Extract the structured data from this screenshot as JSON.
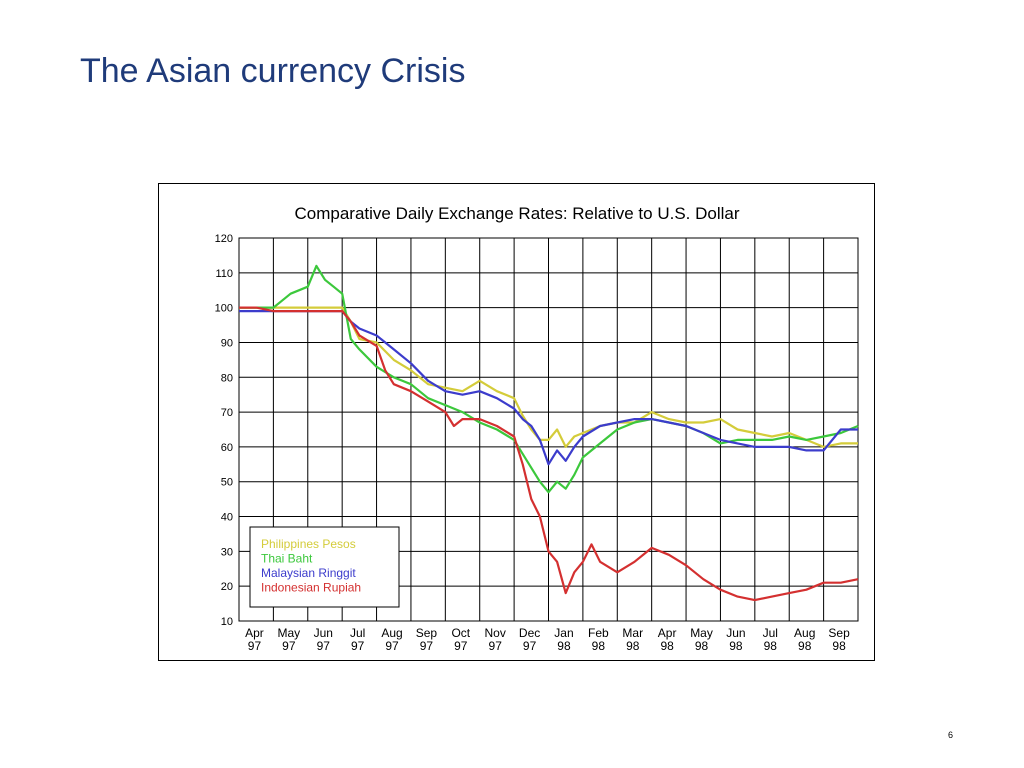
{
  "slide": {
    "title": "The Asian currency Crisis",
    "page_number": "6"
  },
  "chart_data": {
    "type": "line",
    "title": "Comparative Daily Exchange Rates: Relative to U.S. Dollar",
    "xlabel": "",
    "ylabel": "",
    "ylim": [
      10,
      120
    ],
    "yticks": [
      10,
      20,
      30,
      40,
      50,
      60,
      70,
      80,
      90,
      100,
      110,
      120
    ],
    "xlim": [
      0,
      18
    ],
    "x_tick_labels": [
      {
        "month": "Apr",
        "year": "97"
      },
      {
        "month": "May",
        "year": "97"
      },
      {
        "month": "Jun",
        "year": "97"
      },
      {
        "month": "Jul",
        "year": "97"
      },
      {
        "month": "Aug",
        "year": "97"
      },
      {
        "month": "Sep",
        "year": "97"
      },
      {
        "month": "Oct",
        "year": "97"
      },
      {
        "month": "Nov",
        "year": "97"
      },
      {
        "month": "Dec",
        "year": "97"
      },
      {
        "month": "Jan",
        "year": "98"
      },
      {
        "month": "Feb",
        "year": "98"
      },
      {
        "month": "Mar",
        "year": "98"
      },
      {
        "month": "Apr",
        "year": "98"
      },
      {
        "month": "May",
        "year": "98"
      },
      {
        "month": "Jun",
        "year": "98"
      },
      {
        "month": "Jul",
        "year": "98"
      },
      {
        "month": "Aug",
        "year": "98"
      },
      {
        "month": "Sep",
        "year": "98"
      }
    ],
    "grid": true,
    "legend_position": "bottom-left",
    "series": [
      {
        "name": "Philippines Pesos",
        "color": "#d4cc3a",
        "x": [
          0,
          0.5,
          1,
          1.5,
          2,
          2.5,
          3,
          3.25,
          3.5,
          4,
          4.5,
          5,
          5.5,
          6,
          6.5,
          7,
          7.5,
          8,
          8.25,
          8.5,
          8.75,
          9,
          9.25,
          9.5,
          9.75,
          10,
          10.5,
          11,
          11.5,
          12,
          12.5,
          13,
          13.5,
          14,
          14.5,
          15,
          15.5,
          16,
          16.5,
          17,
          17.5,
          18
        ],
        "y": [
          100,
          100,
          100,
          100,
          100,
          100,
          100,
          96,
          91,
          90,
          85,
          82,
          78,
          77,
          76,
          79,
          76,
          74,
          69,
          65,
          62,
          62,
          65,
          60,
          63,
          64,
          66,
          67,
          67,
          70,
          68,
          67,
          67,
          68,
          65,
          64,
          63,
          64,
          62,
          60,
          61,
          61
        ]
      },
      {
        "name": "Thai Baht",
        "color": "#3cc83c",
        "x": [
          0,
          0.5,
          1,
          1.25,
          1.5,
          2,
          2.25,
          2.5,
          2.75,
          3,
          3.25,
          3.5,
          4,
          4.5,
          5,
          5.5,
          6,
          6.5,
          7,
          7.5,
          8,
          8.25,
          8.5,
          8.75,
          9,
          9.25,
          9.5,
          9.75,
          10,
          10.5,
          11,
          11.5,
          12,
          12.5,
          13,
          13.5,
          14,
          14.5,
          15,
          15.5,
          16,
          16.5,
          17,
          17.5,
          18
        ],
        "y": [
          100,
          100,
          100,
          102,
          104,
          106,
          112,
          108,
          106,
          104,
          91,
          88,
          83,
          80,
          78,
          74,
          72,
          70,
          67,
          65,
          62,
          58,
          54,
          50,
          47,
          50,
          48,
          52,
          57,
          61,
          65,
          67,
          68,
          67,
          66,
          64,
          61,
          62,
          62,
          62,
          63,
          62,
          63,
          64,
          66
        ]
      },
      {
        "name": "Malaysian Ringgit",
        "color": "#3c3ccc",
        "x": [
          0,
          0.5,
          1,
          1.5,
          2,
          2.5,
          3,
          3.25,
          3.5,
          4,
          4.5,
          5,
          5.5,
          6,
          6.5,
          7,
          7.5,
          8,
          8.25,
          8.5,
          8.75,
          9,
          9.25,
          9.5,
          9.75,
          10,
          10.5,
          11,
          11.5,
          12,
          12.5,
          13,
          13.5,
          14,
          14.5,
          15,
          15.5,
          16,
          16.5,
          17,
          17.5,
          18
        ],
        "y": [
          99,
          99,
          99,
          99,
          99,
          99,
          99,
          96,
          94,
          92,
          88,
          84,
          79,
          76,
          75,
          76,
          74,
          71,
          68,
          66,
          62,
          55,
          59,
          56,
          60,
          63,
          66,
          67,
          68,
          68,
          67,
          66,
          64,
          62,
          61,
          60,
          60,
          60,
          59,
          59,
          65,
          65
        ]
      },
      {
        "name": "Indonesian Rupiah",
        "color": "#d43030",
        "x": [
          0,
          0.5,
          1,
          1.5,
          2,
          2.5,
          3,
          3.25,
          3.5,
          4,
          4.25,
          4.5,
          5,
          5.5,
          6,
          6.25,
          6.5,
          7,
          7.5,
          8,
          8.25,
          8.5,
          8.75,
          9,
          9.25,
          9.5,
          9.75,
          10,
          10.25,
          10.5,
          11,
          11.5,
          12,
          12.5,
          13,
          13.5,
          14,
          14.5,
          15,
          15.5,
          16,
          16.5,
          17,
          17.5,
          18
        ],
        "y": [
          100,
          100,
          99,
          99,
          99,
          99,
          99,
          96,
          92,
          89,
          82,
          78,
          76,
          73,
          70,
          66,
          68,
          68,
          66,
          63,
          55,
          45,
          40,
          30,
          27,
          18,
          24,
          27,
          32,
          27,
          24,
          27,
          31,
          29,
          26,
          22,
          19,
          17,
          16,
          17,
          18,
          19,
          21,
          21,
          22
        ]
      }
    ]
  }
}
